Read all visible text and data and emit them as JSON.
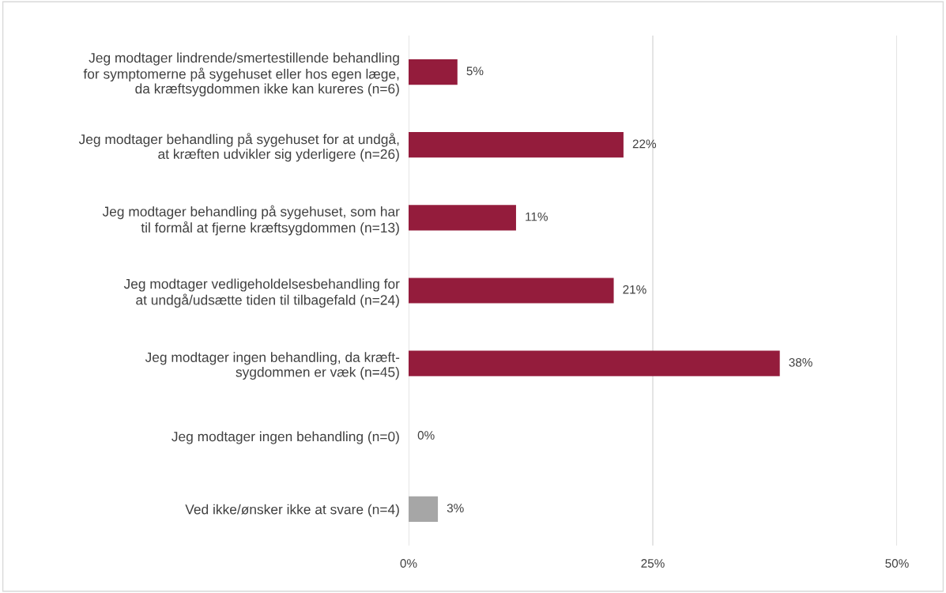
{
  "chart_data": {
    "type": "bar",
    "orientation": "horizontal",
    "categories": [
      "Jeg modtager lindrende/smertestillende behandling\nfor symptomerne på sygehuset eller hos egen læge,\nda kræftsygdommen ikke kan kureres (n=6)",
      "Jeg modtager behandling på sygehuset for at undgå,\nat kræften udvikler sig yderligere (n=26)",
      "Jeg modtager behandling på sygehuset, som har\ntil formål at fjerne kræftsygdommen (n=13)",
      "Jeg modtager vedligeholdelsesbehandling for\nat undgå/udsætte tiden til tilbagefald (n=24)",
      "Jeg modtager ingen behandling, da kræft-\nsygdommen er væk (n=45)",
      "Jeg modtager ingen behandling (n=0)",
      "Ved ikke/ønsker ikke at svare (n=4)"
    ],
    "values": [
      5,
      22,
      11,
      21,
      38,
      0,
      3
    ],
    "colors": [
      "#941c3c",
      "#941c3c",
      "#941c3c",
      "#941c3c",
      "#941c3c",
      "#941c3c",
      "#a6a6a6"
    ],
    "value_labels": [
      "5%",
      "22%",
      "11%",
      "21%",
      "38%",
      "0%",
      "3%"
    ],
    "xlim": [
      0,
      50
    ],
    "xticks": [
      {
        "value": 0,
        "label": "0%"
      },
      {
        "value": 25,
        "label": "25%"
      },
      {
        "value": 50,
        "label": "50%"
      }
    ],
    "grid": "x",
    "legend": false
  }
}
